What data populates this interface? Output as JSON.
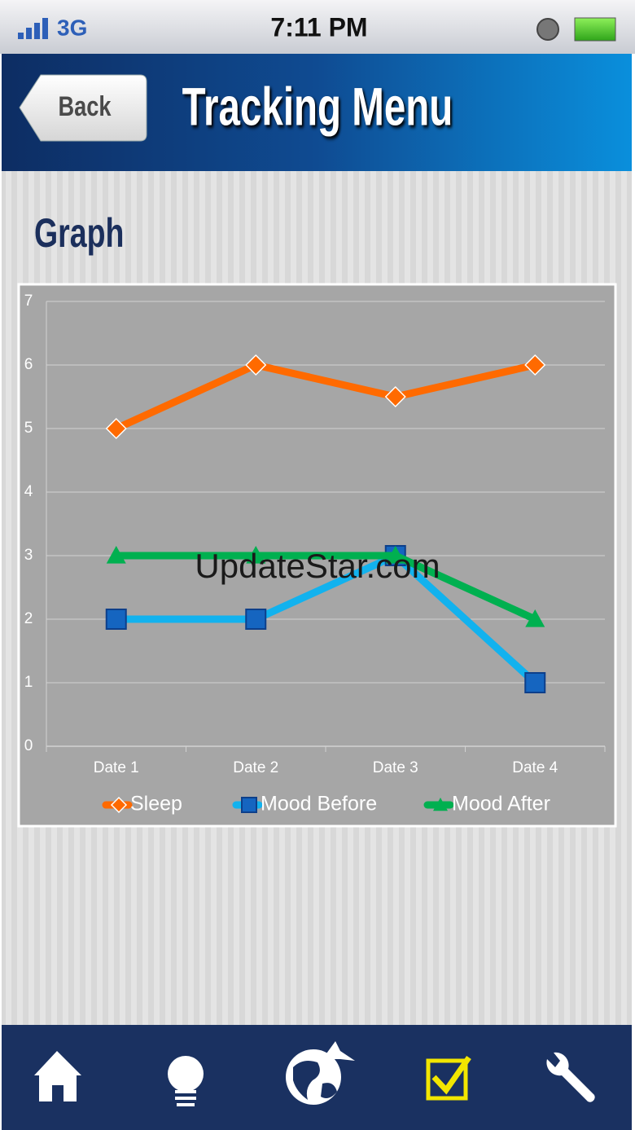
{
  "status_bar": {
    "network": "3G",
    "time": "7:11 PM"
  },
  "header": {
    "back": "Back",
    "title": "Tracking Menu"
  },
  "section_title": "Graph",
  "watermark": "UpdateStar.com",
  "chart_data": {
    "type": "line",
    "categories": [
      "Date 1",
      "Date 2",
      "Date 3",
      "Date 4"
    ],
    "series": [
      {
        "name": "Sleep",
        "color": "#ff6a00",
        "marker": "diamond",
        "marker_color": "#ff6a00",
        "values": [
          5,
          6,
          5.5,
          6
        ]
      },
      {
        "name": "Mood Before",
        "color": "#12b2ee",
        "marker": "square",
        "marker_color": "#1565c0",
        "values": [
          2,
          2,
          3,
          1
        ]
      },
      {
        "name": "Mood After",
        "color": "#00b050",
        "marker": "triangle",
        "marker_color": "#00b050",
        "values": [
          3,
          3,
          3,
          2
        ]
      }
    ],
    "ylim": [
      0,
      7
    ],
    "yticks": [
      0,
      1,
      2,
      3,
      4,
      5,
      6,
      7
    ],
    "grid": true
  }
}
